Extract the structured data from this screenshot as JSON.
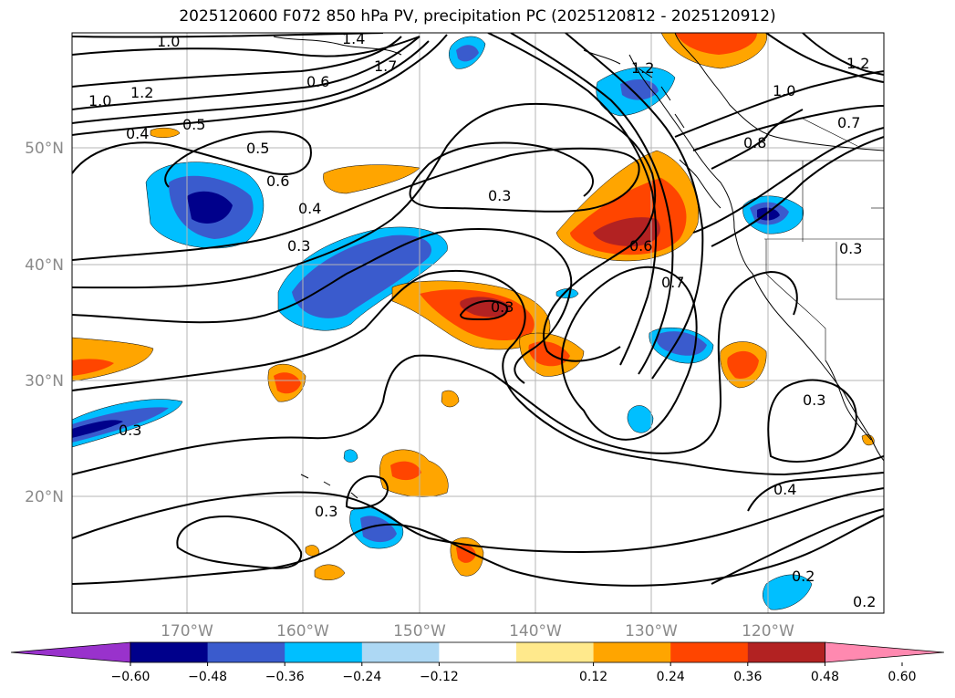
{
  "title": "2025120600 F072 850 hPa PV, precipitation PC (2025120812 - 2025120912)",
  "lat_labels": [
    "50°N",
    "40°N",
    "30°N",
    "20°N"
  ],
  "lon_labels": [
    "170°W",
    "160°W",
    "150°W",
    "140°W",
    "130°W",
    "120°W"
  ],
  "colorbar": {
    "ticks": [
      "−0.60",
      "−0.48",
      "−0.36",
      "−0.24",
      "−0.12",
      "0.12",
      "0.24",
      "0.36",
      "0.48",
      "0.60"
    ],
    "colors": [
      "#9932cc",
      "#00008b",
      "#3a5bcd",
      "#00bfff",
      "#add8f4",
      "#ffffff",
      "#ffe98c",
      "#ffa500",
      "#ff4500",
      "#b22222",
      "#ff89b0"
    ]
  },
  "contour_labels": [
    "1.0",
    "1.4",
    "1.7",
    "0.6",
    "1.2",
    "0.5",
    "0.4",
    "0.5",
    "0.6",
    "0.4",
    "0.3",
    "0.3",
    "0.3",
    "0.6",
    "0.7",
    "0.8",
    "1.0",
    "0.7",
    "1.2",
    "0.3",
    "0.3",
    "0.3",
    "0.3",
    "0.4",
    "0.2",
    "0.2",
    "1.0",
    "1.2"
  ]
}
